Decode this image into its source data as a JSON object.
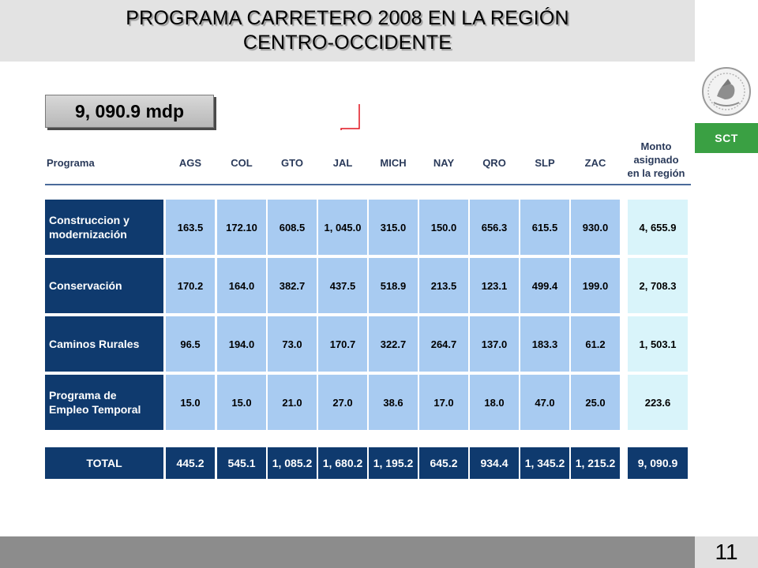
{
  "slide": {
    "title_line1": "PROGRAMA CARRETERO 2008 EN LA REGIÓN",
    "title_line2": "CENTRO-OCCIDENTE",
    "total_amount": "9, 090.9 mdp",
    "agency": "SCT",
    "page_number": "11",
    "colors": {
      "header_bg": "#e3e3e3",
      "label_bg": "#0f3a6e",
      "value_bg": "#a8cbf1",
      "monto_bg": "#d9f4fa",
      "sct_green": "#3aa043",
      "arrow": "#e0141e",
      "footer_bg": "#8c8c8c"
    },
    "icons": [
      "coat-of-arms-icon",
      "arrow-down-icon"
    ]
  },
  "table": {
    "headers": {
      "program": "Programa",
      "states": [
        "AGS",
        "COL",
        "GTO",
        "JAL",
        "MICH",
        "NAY",
        "QRO",
        "SLP",
        "ZAC"
      ],
      "monto": [
        "Monto",
        "asignado",
        "en la región"
      ]
    },
    "rows": [
      {
        "label": [
          "Construccion y",
          "modernización"
        ],
        "values": [
          "163.5",
          "172.10",
          "608.5",
          "1, 045.0",
          "315.0",
          "150.0",
          "656.3",
          "615.5",
          "930.0"
        ],
        "monto": "4, 655.9"
      },
      {
        "label": [
          "Conservación"
        ],
        "values": [
          "170.2",
          "164.0",
          "382.7",
          "437.5",
          "518.9",
          "213.5",
          "123.1",
          "499.4",
          "199.0"
        ],
        "monto": "2, 708.3"
      },
      {
        "label": [
          "Caminos Rurales"
        ],
        "values": [
          "96.5",
          "194.0",
          "73.0",
          "170.7",
          "322.7",
          "264.7",
          "137.0",
          "183.3",
          "61.2"
        ],
        "monto": "1, 503.1"
      },
      {
        "label": [
          "Programa de",
          "Empleo Temporal"
        ],
        "values": [
          "15.0",
          "15.0",
          "21.0",
          "27.0",
          "38.6",
          "17.0",
          "18.0",
          "47.0",
          "25.0"
        ],
        "monto": "223.6"
      }
    ],
    "total": {
      "label": "TOTAL",
      "values": [
        "445.2",
        "545.1",
        "1, 085.2",
        "1, 680.2",
        "1, 195.2",
        "645.2",
        "934.4",
        "1, 345.2",
        "1, 215.2"
      ],
      "monto": "9, 090.9"
    }
  }
}
